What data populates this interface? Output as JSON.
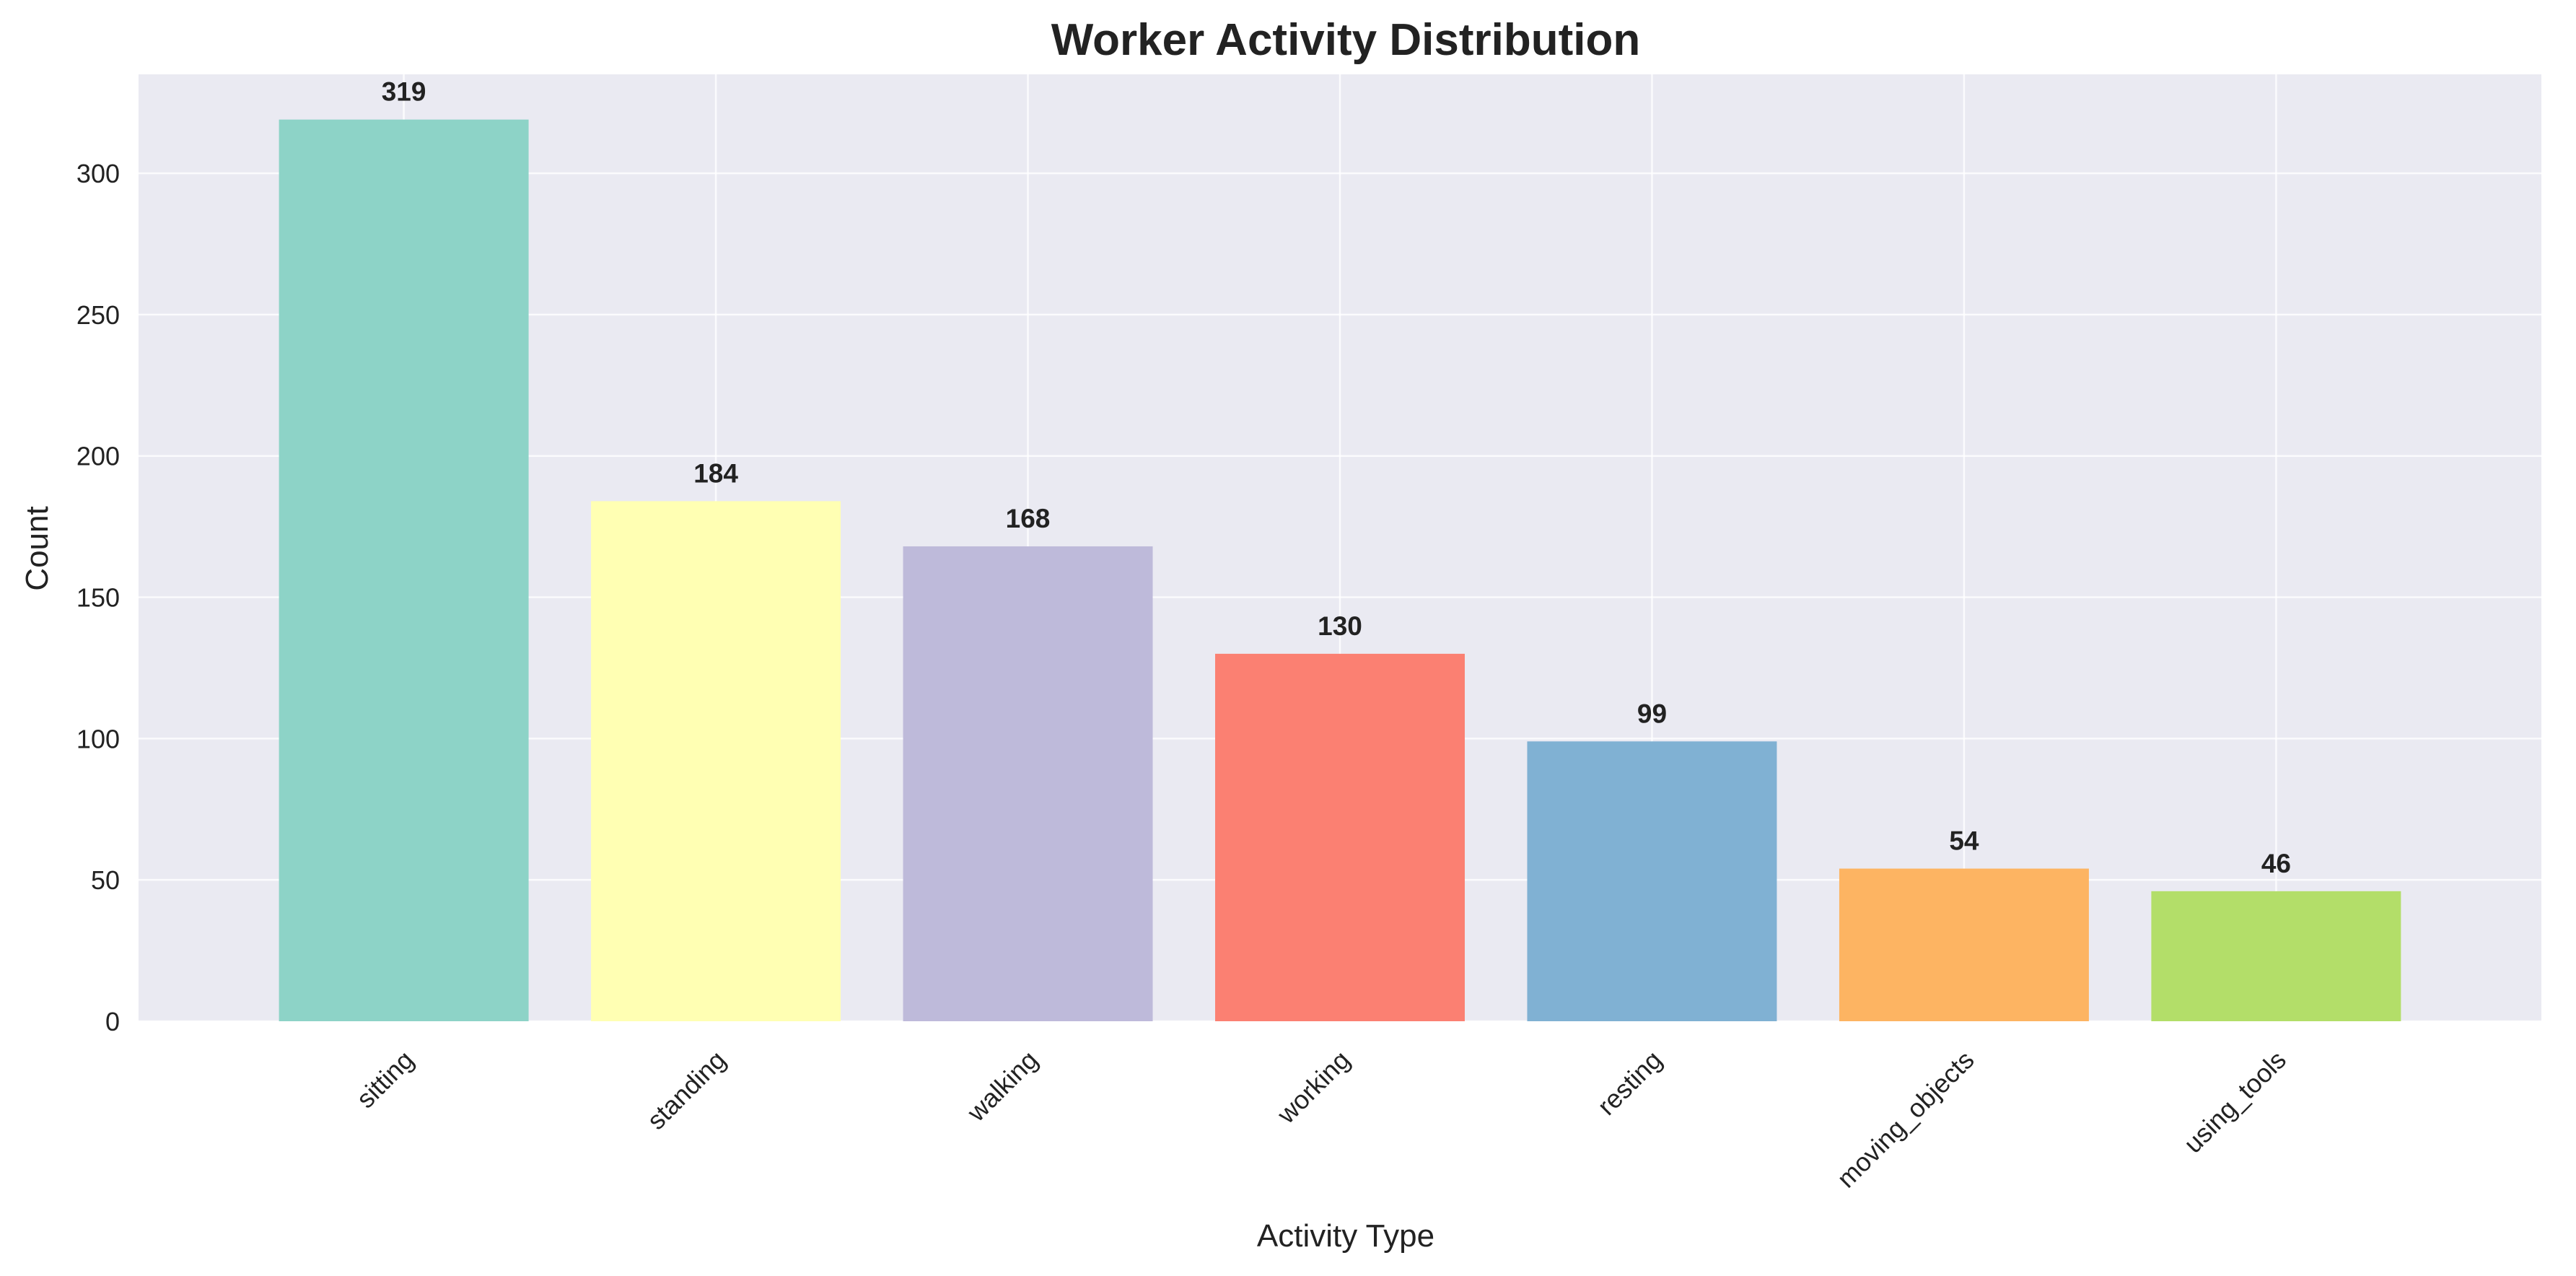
{
  "chart_data": {
    "type": "bar",
    "title": "Worker Activity Distribution",
    "xlabel": "Activity Type",
    "ylabel": "Count",
    "categories": [
      "sitting",
      "standing",
      "walking",
      "working",
      "resting",
      "moving_objects",
      "using_tools"
    ],
    "values": [
      319,
      184,
      168,
      130,
      99,
      54,
      46
    ],
    "colors": [
      "#8dd3c7",
      "#ffffb3",
      "#bebada",
      "#fb8072",
      "#80b1d3",
      "#fdb462",
      "#b3de69"
    ],
    "ylim": [
      0,
      335
    ],
    "yticks": [
      0,
      50,
      100,
      150,
      200,
      250,
      300
    ],
    "grid": true,
    "background_color": "#eaeaf2",
    "legend": false
  }
}
